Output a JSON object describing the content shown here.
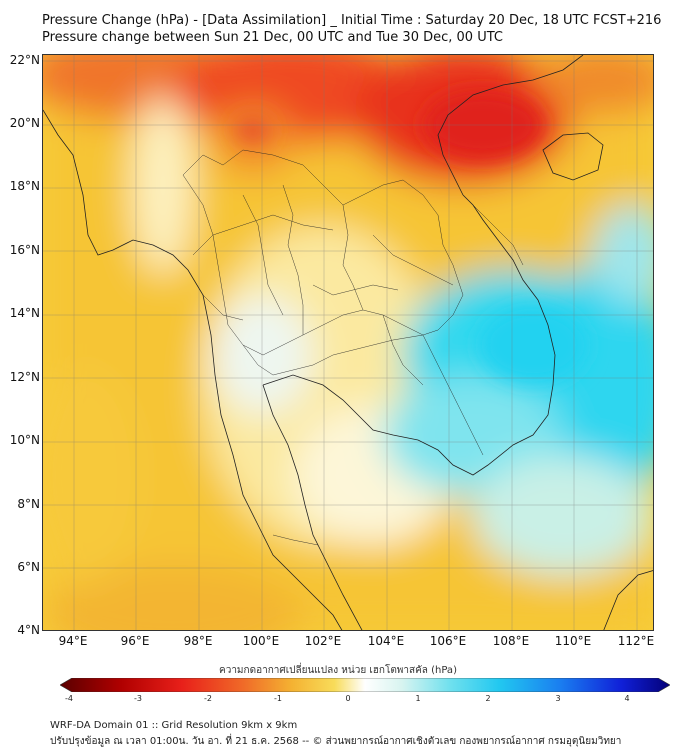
{
  "title": {
    "line1": "Pressure Change (hPa) - [Data Assimilation] _ Initial Time : Saturday 20 Dec, 18 UTC FCST+216",
    "line2": "Pressure change between Sun 21 Dec, 00 UTC and Tue 30 Dec, 00 UTC"
  },
  "map": {
    "lat_labels": [
      "22°N",
      "20°N",
      "18°N",
      "16°N",
      "14°N",
      "12°N",
      "10°N",
      "8°N",
      "6°N",
      "4°N"
    ],
    "lon_labels": [
      "94°E",
      "96°E",
      "98°E",
      "100°E",
      "102°E",
      "104°E",
      "106°E",
      "108°E",
      "110°E",
      "112°E"
    ]
  },
  "colorbar": {
    "label": "ความกดอากาศเปลี่ยนแปลง หน่วย เฮกโตพาสคัล (hPa)",
    "ticks": [
      "-4",
      "-3",
      "-2",
      "-1",
      "0",
      "1",
      "2",
      "3",
      "4"
    ],
    "range": [
      -4,
      4
    ]
  },
  "footer": {
    "line1": "WRF-DA Domain 01 :: Grid Resolution 9km x 9km",
    "line2": "ปรับปรุงข้อมูล ณ เวลา 01:00น. วัน อา. ที่ 21 ธ.ค. 2568 -- © ส่วนพยากรณ์อากาศเชิงตัวเลข กองพยากรณ์อากาศ กรมอุตุนิยมวิทยา"
  }
}
